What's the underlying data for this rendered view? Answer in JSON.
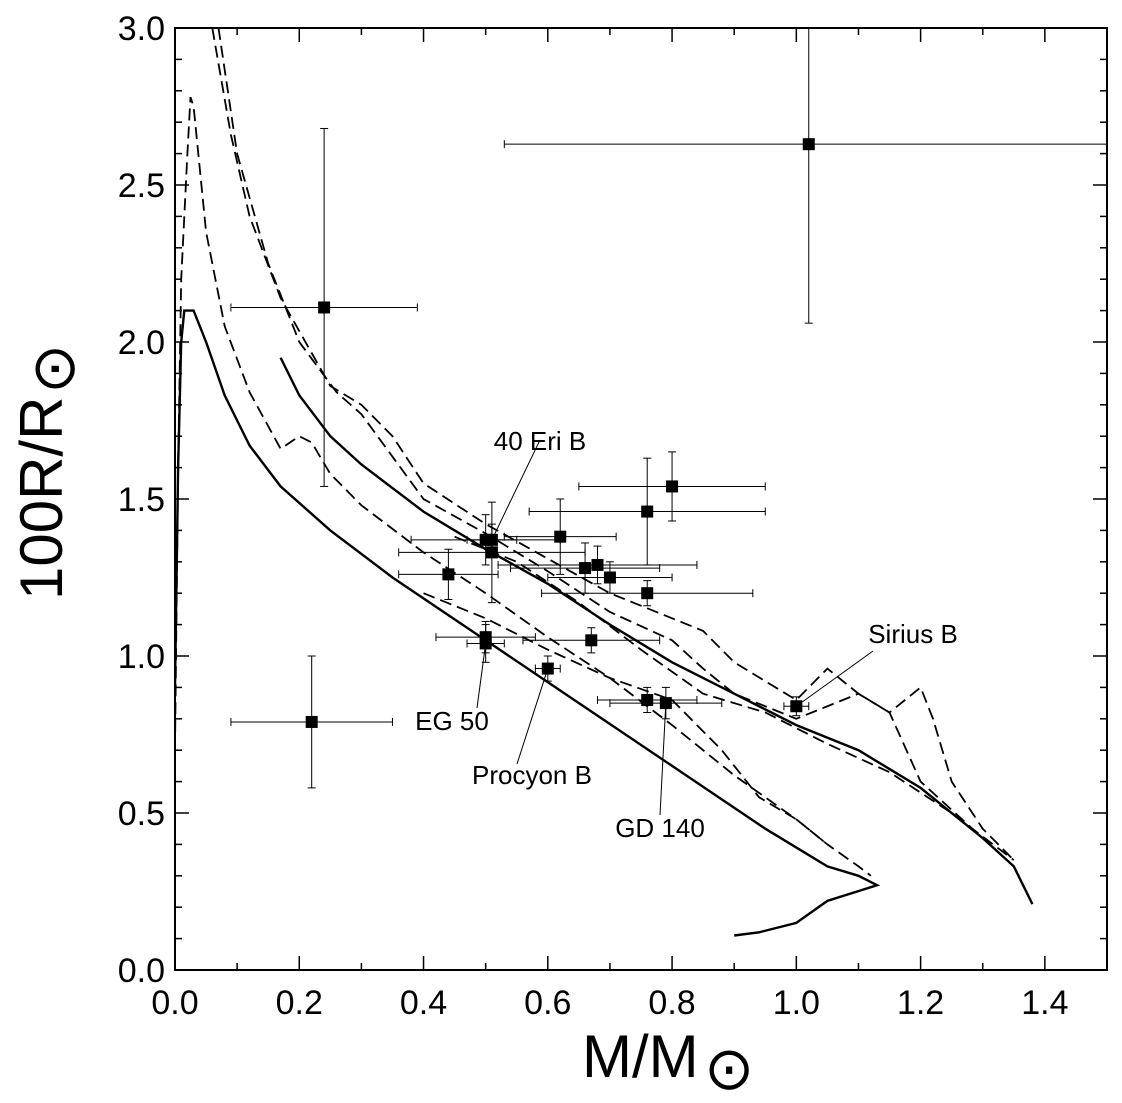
{
  "chart_data": {
    "type": "scatter",
    "title": "",
    "xlabel": "M/M",
    "xlabel_sub": "⊙",
    "ylabel": "100R/R",
    "ylabel_sub": "⊙",
    "xlim": [
      0.0,
      1.5
    ],
    "ylim": [
      0.0,
      3.0
    ],
    "x_ticks": [
      "0.0",
      "0.2",
      "0.4",
      "0.6",
      "0.8",
      "1.0",
      "1.2",
      "1.4"
    ],
    "y_ticks": [
      "0.0",
      "0.5",
      "1.0",
      "1.5",
      "2.0",
      "2.5",
      "3.0"
    ],
    "grid": false,
    "points": [
      {
        "x": 1.02,
        "y": 2.63,
        "xerr": 0.49,
        "yerr": 0.57
      },
      {
        "x": 0.24,
        "y": 2.11,
        "xerr": 0.15,
        "yerr": 0.57
      },
      {
        "x": 0.22,
        "y": 0.79,
        "xerr": 0.13,
        "yerr": 0.21
      },
      {
        "x": 0.5,
        "y": 1.37,
        "xerr": 0.12,
        "yerr": 0.08
      },
      {
        "x": 0.51,
        "y": 1.37,
        "xerr": 0.04,
        "yerr": 0.05
      },
      {
        "x": 0.51,
        "y": 1.33,
        "xerr": 0.15,
        "yerr": 0.16
      },
      {
        "x": 0.44,
        "y": 1.26,
        "xerr": 0.08,
        "yerr": 0.08
      },
      {
        "x": 0.62,
        "y": 1.38,
        "xerr": 0.09,
        "yerr": 0.12
      },
      {
        "x": 0.76,
        "y": 1.46,
        "xerr": 0.19,
        "yerr": 0.17
      },
      {
        "x": 0.8,
        "y": 1.54,
        "xerr": 0.15,
        "yerr": 0.11
      },
      {
        "x": 0.66,
        "y": 1.28,
        "xerr": 0.12,
        "yerr": 0.08
      },
      {
        "x": 0.68,
        "y": 1.29,
        "xerr": 0.16,
        "yerr": 0.06
      },
      {
        "x": 0.7,
        "y": 1.25,
        "xerr": 0.1,
        "yerr": 0.05
      },
      {
        "x": 0.76,
        "y": 1.2,
        "xerr": 0.17,
        "yerr": 0.04
      },
      {
        "x": 0.5,
        "y": 1.06,
        "xerr": 0.08,
        "yerr": 0.05
      },
      {
        "x": 0.5,
        "y": 1.04,
        "xerr": 0.03,
        "yerr": 0.06
      },
      {
        "x": 0.67,
        "y": 1.05,
        "xerr": 0.11,
        "yerr": 0.04
      },
      {
        "x": 0.6,
        "y": 0.96,
        "xerr": 0.02,
        "yerr": 0.04
      },
      {
        "x": 0.76,
        "y": 0.86,
        "xerr": 0.08,
        "yerr": 0.04
      },
      {
        "x": 0.79,
        "y": 0.85,
        "xerr": 0.09,
        "yerr": 0.05
      },
      {
        "x": 1.0,
        "y": 0.84,
        "xerr": 0.02,
        "yerr": 0.03
      }
    ],
    "solid_curves": [
      [
        [
          0.0,
          0.9
        ],
        [
          0.005,
          1.6
        ],
        [
          0.01,
          2.0
        ],
        [
          0.015,
          2.1
        ],
        [
          0.03,
          2.1
        ],
        [
          0.05,
          2.0
        ],
        [
          0.08,
          1.83
        ],
        [
          0.12,
          1.67
        ],
        [
          0.17,
          1.54
        ],
        [
          0.25,
          1.4
        ],
        [
          0.35,
          1.25
        ],
        [
          0.5,
          1.05
        ],
        [
          0.65,
          0.85
        ],
        [
          0.8,
          0.65
        ],
        [
          0.95,
          0.45
        ],
        [
          1.05,
          0.33
        ],
        [
          1.1,
          0.3
        ],
        [
          1.13,
          0.27
        ],
        [
          1.05,
          0.22
        ],
        [
          1.0,
          0.15
        ],
        [
          0.94,
          0.12
        ],
        [
          0.9,
          0.11
        ]
      ],
      [
        [
          0.17,
          1.95
        ],
        [
          0.2,
          1.83
        ],
        [
          0.25,
          1.7
        ],
        [
          0.3,
          1.61
        ],
        [
          0.4,
          1.46
        ],
        [
          0.5,
          1.34
        ],
        [
          0.6,
          1.23
        ],
        [
          0.7,
          1.1
        ],
        [
          0.8,
          0.98
        ],
        [
          0.9,
          0.88
        ],
        [
          1.0,
          0.78
        ],
        [
          1.1,
          0.7
        ],
        [
          1.2,
          0.58
        ],
        [
          1.3,
          0.42
        ],
        [
          1.35,
          0.33
        ],
        [
          1.38,
          0.21
        ]
      ]
    ],
    "dashed_curves": [
      [
        [
          0.0,
          0.7
        ],
        [
          0.005,
          1.6
        ],
        [
          0.01,
          2.2
        ],
        [
          0.02,
          2.6
        ],
        [
          0.025,
          2.78
        ],
        [
          0.03,
          2.75
        ],
        [
          0.05,
          2.35
        ],
        [
          0.08,
          2.05
        ],
        [
          0.12,
          1.84
        ],
        [
          0.17,
          1.66
        ],
        [
          0.2,
          1.7
        ],
        [
          0.22,
          1.68
        ],
        [
          0.25,
          1.58
        ],
        [
          0.3,
          1.48
        ],
        [
          0.4,
          1.33
        ],
        [
          0.5,
          1.2
        ],
        [
          0.6,
          1.06
        ],
        [
          0.7,
          0.93
        ],
        [
          0.8,
          0.78
        ],
        [
          0.9,
          0.62
        ],
        [
          1.0,
          0.48
        ],
        [
          1.05,
          0.4
        ],
        [
          1.1,
          0.33
        ],
        [
          1.12,
          0.3
        ]
      ],
      [
        [
          0.06,
          3.0
        ],
        [
          0.09,
          2.66
        ],
        [
          0.12,
          2.4
        ],
        [
          0.17,
          2.14
        ],
        [
          0.25,
          1.86
        ],
        [
          0.3,
          1.8
        ],
        [
          0.35,
          1.7
        ],
        [
          0.4,
          1.55
        ],
        [
          0.5,
          1.42
        ],
        [
          0.6,
          1.31
        ],
        [
          0.7,
          1.2
        ],
        [
          0.8,
          1.12
        ],
        [
          0.85,
          1.08
        ],
        [
          0.9,
          0.98
        ],
        [
          1.0,
          0.86
        ],
        [
          1.05,
          0.96
        ],
        [
          1.1,
          0.88
        ],
        [
          1.15,
          0.82
        ],
        [
          1.2,
          0.9
        ],
        [
          1.22,
          0.8
        ],
        [
          1.25,
          0.6
        ],
        [
          1.3,
          0.45
        ],
        [
          1.35,
          0.35
        ]
      ],
      [
        [
          0.07,
          3.0
        ],
        [
          0.1,
          2.6
        ],
        [
          0.15,
          2.25
        ],
        [
          0.2,
          2.0
        ],
        [
          0.26,
          1.84
        ],
        [
          0.3,
          1.77
        ],
        [
          0.4,
          1.5
        ],
        [
          0.5,
          1.39
        ],
        [
          0.6,
          1.27
        ],
        [
          0.7,
          1.14
        ],
        [
          0.8,
          1.05
        ],
        [
          0.85,
          0.96
        ],
        [
          0.9,
          0.88
        ],
        [
          1.0,
          0.8
        ],
        [
          1.1,
          0.88
        ],
        [
          1.15,
          0.82
        ],
        [
          1.2,
          0.6
        ],
        [
          1.3,
          0.42
        ],
        [
          1.35,
          0.33
        ]
      ],
      [
        [
          0.45,
          1.38
        ],
        [
          0.55,
          1.3
        ],
        [
          0.65,
          1.17
        ],
        [
          0.75,
          1.02
        ],
        [
          0.85,
          0.88
        ],
        [
          0.95,
          0.82
        ],
        [
          1.05,
          0.72
        ],
        [
          1.15,
          0.63
        ],
        [
          1.25,
          0.5
        ],
        [
          1.35,
          0.35
        ]
      ],
      [
        [
          0.4,
          1.2
        ],
        [
          0.5,
          1.12
        ],
        [
          0.6,
          1.02
        ],
        [
          0.7,
          0.93
        ],
        [
          0.8,
          0.86
        ],
        [
          0.88,
          0.7
        ],
        [
          0.94,
          0.55
        ],
        [
          1.0,
          0.48
        ],
        [
          1.05,
          0.4
        ]
      ]
    ],
    "annotations": [
      {
        "label": "40 Eri B",
        "x": 0.51,
        "y": 1.37
      },
      {
        "label": "Sirius B",
        "x": 1.0,
        "y": 0.84
      },
      {
        "label": "EG 50",
        "x": 0.5,
        "y": 1.04
      },
      {
        "label": "Procyon B",
        "x": 0.6,
        "y": 0.96
      },
      {
        "label": "GD 140",
        "x": 0.79,
        "y": 0.85
      }
    ]
  }
}
